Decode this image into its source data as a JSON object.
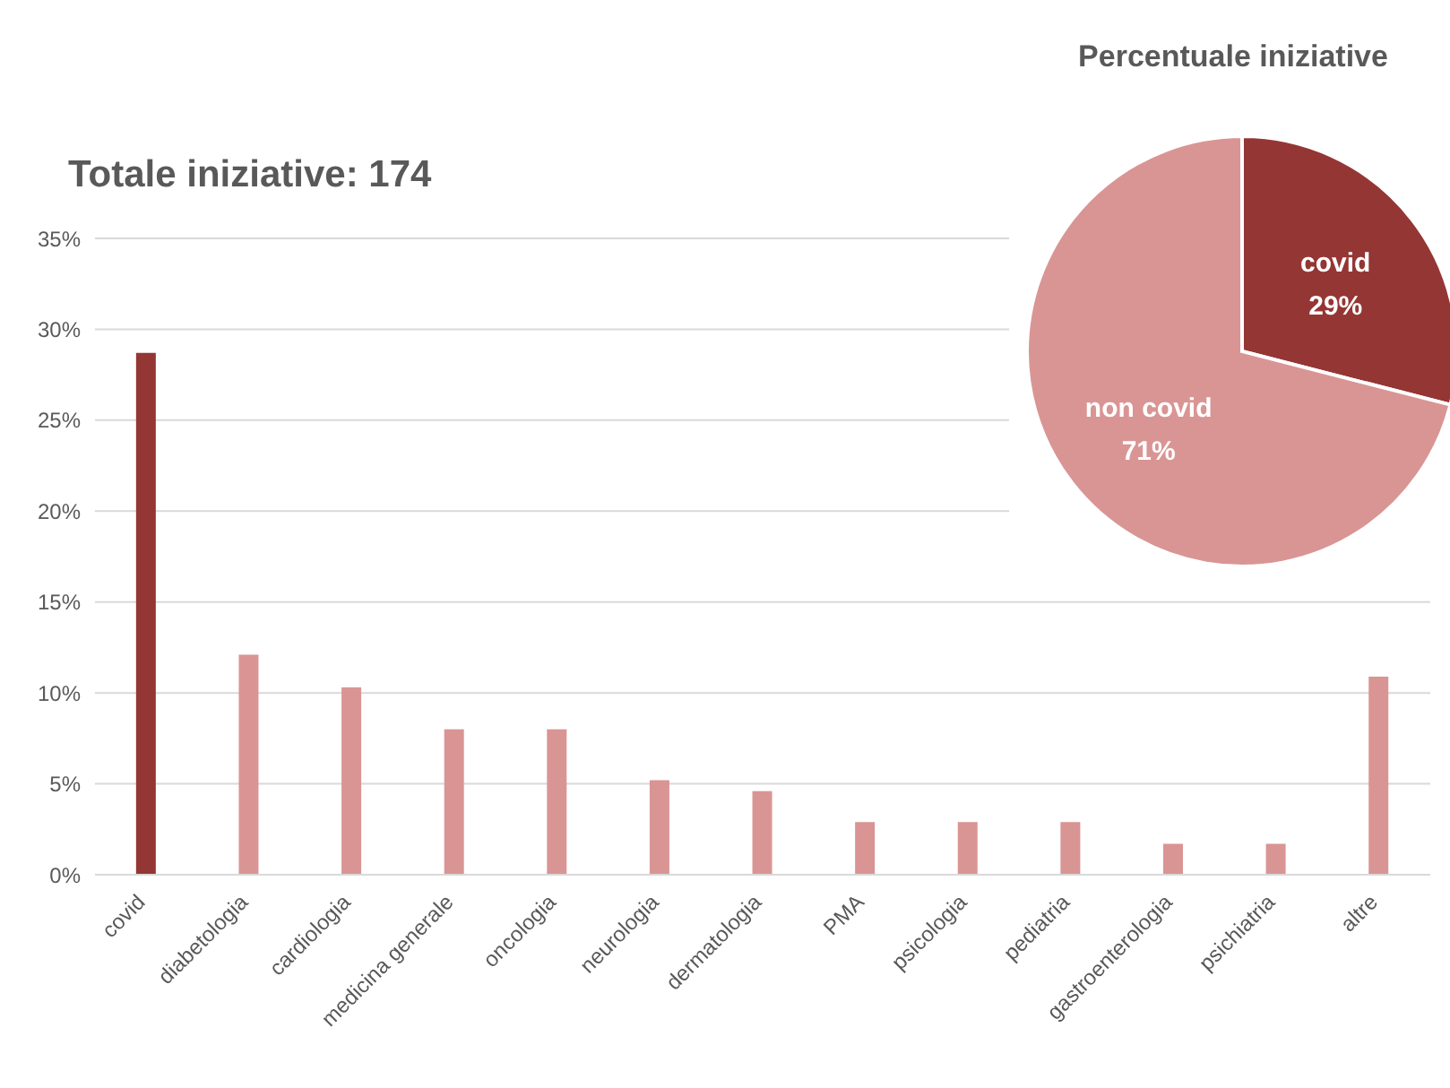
{
  "chart_data": [
    {
      "type": "bar",
      "title": "Totale iniziative: 174",
      "categories": [
        "covid",
        "diabetologia",
        "cardiologia",
        "medicina generale",
        "oncologia",
        "neurologia",
        "dermatologia",
        "PMA",
        "psicologia",
        "pediatria",
        "gastroenterologia",
        "psichiatria",
        "altre"
      ],
      "values": [
        28.7,
        12.1,
        10.3,
        8.0,
        8.0,
        5.2,
        4.6,
        2.9,
        2.9,
        2.9,
        1.7,
        1.7,
        10.9
      ],
      "colors": [
        "#943634",
        "#d99594",
        "#d99594",
        "#d99594",
        "#d99594",
        "#d99594",
        "#d99594",
        "#d99594",
        "#d99594",
        "#d99594",
        "#d99594",
        "#d99594",
        "#d99594"
      ],
      "ylim": [
        0,
        35
      ],
      "yticks": [
        {
          "value": 0,
          "label": "0%"
        },
        {
          "value": 5,
          "label": "5%"
        },
        {
          "value": 10,
          "label": "10%"
        },
        {
          "value": 15,
          "label": "15%"
        },
        {
          "value": 20,
          "label": "20%"
        },
        {
          "value": 25,
          "label": "25%"
        },
        {
          "value": 30,
          "label": "30%"
        },
        {
          "value": 35,
          "label": "35%"
        }
      ],
      "grid": "y"
    },
    {
      "type": "pie",
      "title": "Percentuale iniziative",
      "categories": [
        "covid",
        "non covid"
      ],
      "values": [
        29,
        71
      ],
      "colors": [
        "#943634",
        "#d99594"
      ],
      "value_labels": [
        "29%",
        "71%"
      ]
    }
  ]
}
